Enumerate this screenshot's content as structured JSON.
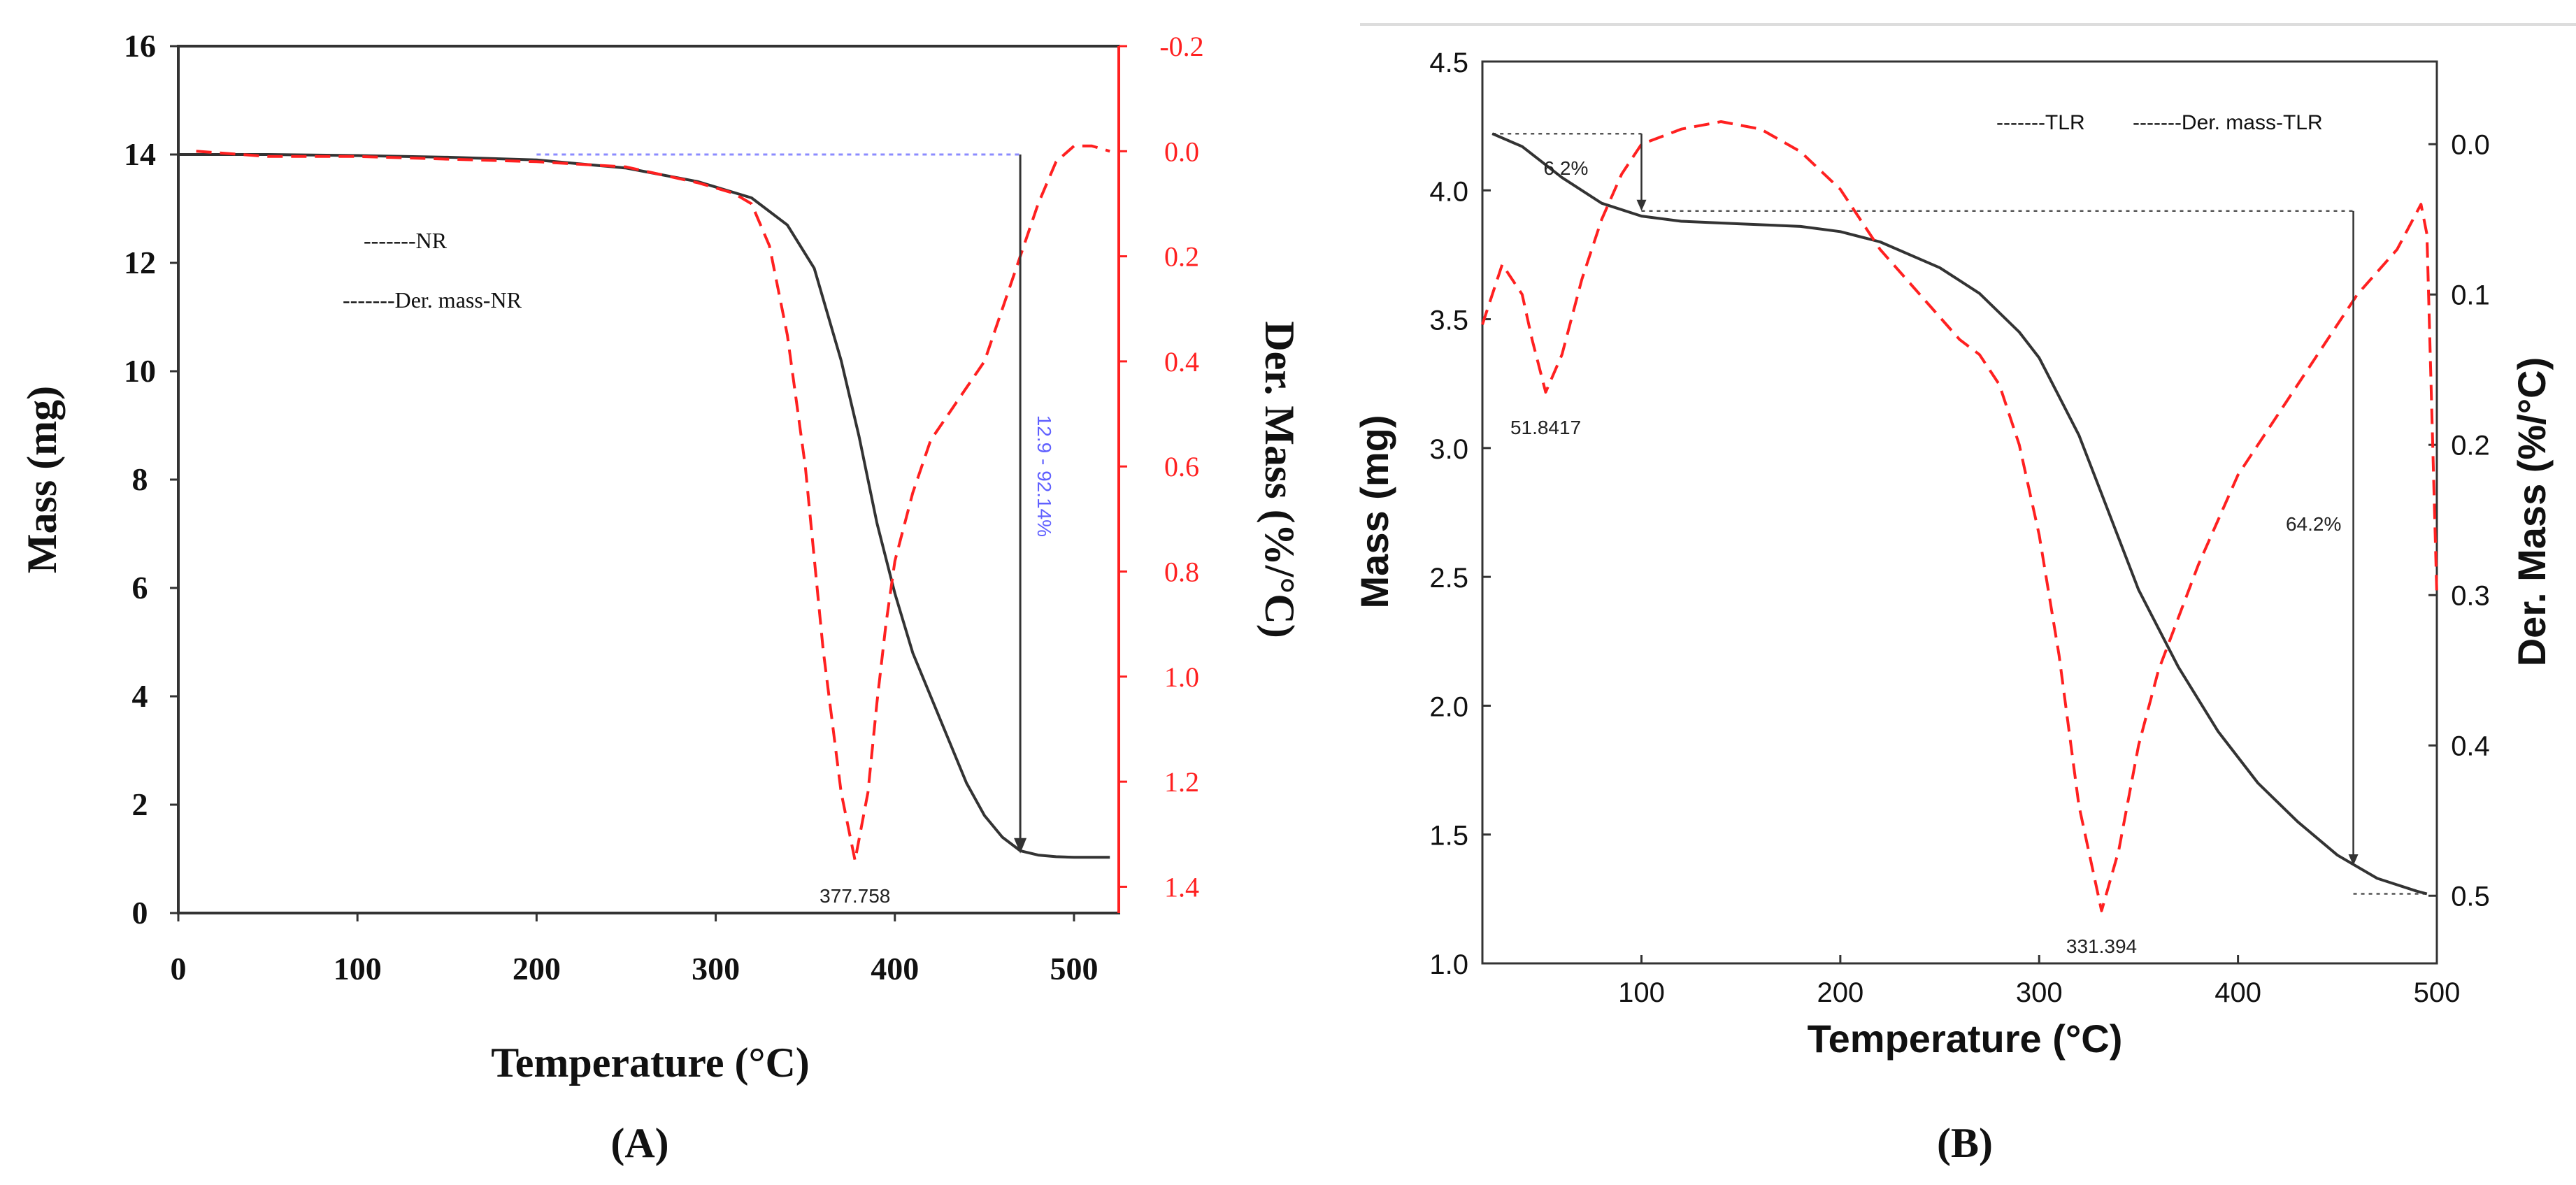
{
  "chart_data": [
    {
      "type": "line",
      "panel_label": "(A)",
      "xlabel": "Temperature (°C)",
      "ylabel": "Mass (mg)",
      "y2label": "Der. Mass (%/°C)",
      "xlim": [
        0,
        525
      ],
      "ylim": [
        0,
        16
      ],
      "y2lim": [
        -0.2,
        1.45
      ],
      "xticks": [
        0,
        100,
        200,
        300,
        400,
        500
      ],
      "yticks": [
        0,
        2,
        4,
        6,
        8,
        10,
        12,
        14,
        16
      ],
      "y2ticks": [
        "-0.2",
        "0.0",
        "0.2",
        "0.4",
        "0.6",
        "0.8",
        "1.0",
        "1.2",
        "1.4"
      ],
      "legend": [
        "-------NR",
        "-------Der. mass-NR"
      ],
      "series": [
        {
          "name": "NR",
          "axis": "left",
          "color": "#333333",
          "dashed": false,
          "x": [
            0,
            50,
            100,
            150,
            200,
            250,
            290,
            320,
            340,
            355,
            370,
            380,
            390,
            400,
            410,
            420,
            430,
            440,
            450,
            460,
            470,
            480,
            490,
            500,
            510,
            520
          ],
          "y": [
            14.0,
            14.0,
            13.98,
            13.95,
            13.9,
            13.75,
            13.5,
            13.2,
            12.7,
            11.9,
            10.2,
            8.8,
            7.2,
            5.9,
            4.8,
            4.0,
            3.2,
            2.4,
            1.8,
            1.4,
            1.15,
            1.07,
            1.04,
            1.03,
            1.03,
            1.03
          ]
        },
        {
          "name": "Der. mass-NR",
          "axis": "right",
          "color": "#ff2020",
          "dashed": true,
          "x": [
            10,
            50,
            100,
            150,
            200,
            250,
            290,
            310,
            320,
            330,
            340,
            350,
            360,
            370,
            377.758,
            385,
            390,
            395,
            400,
            410,
            420,
            430,
            440,
            450,
            460,
            470,
            480,
            490,
            500,
            510,
            520
          ],
          "y": [
            0.0,
            0.01,
            0.01,
            0.015,
            0.02,
            0.03,
            0.06,
            0.08,
            0.1,
            0.18,
            0.35,
            0.6,
            0.95,
            1.22,
            1.35,
            1.22,
            1.05,
            0.9,
            0.78,
            0.65,
            0.55,
            0.5,
            0.45,
            0.4,
            0.3,
            0.2,
            0.1,
            0.02,
            -0.01,
            -0.01,
            0.0
          ]
        }
      ],
      "annotations": {
        "peak_label": "377.758",
        "mass_loss_label": "12.9 - 92.14%",
        "reference_line_y": 14.0,
        "arrow_x": 470,
        "arrow_from": 14.0,
        "arrow_to": 1.1
      }
    },
    {
      "type": "line",
      "panel_label": "(B)",
      "xlabel": "Temperature (°C)",
      "ylabel": "Mass (mg)",
      "y2label": "Der. Mass (%/°C)",
      "xlim": [
        20,
        500
      ],
      "ylim": [
        1.0,
        4.5
      ],
      "y2lim": [
        -0.055,
        0.545
      ],
      "xticks": [
        100,
        200,
        300,
        400,
        500
      ],
      "yticks": [
        "1.0",
        "1.5",
        "2.0",
        "2.5",
        "3.0",
        "3.5",
        "4.0",
        "4.5"
      ],
      "y2ticks": [
        "0.0",
        "0.1",
        "0.2",
        "0.3",
        "0.4",
        "0.5"
      ],
      "legend": [
        "-------TLR",
        "-------Der. mass-TLR"
      ],
      "series": [
        {
          "name": "TLR",
          "axis": "left",
          "color": "#333333",
          "dashed": false,
          "x": [
            25,
            40,
            60,
            80,
            100,
            120,
            150,
            180,
            200,
            220,
            250,
            270,
            290,
            300,
            310,
            320,
            330,
            340,
            350,
            370,
            390,
            410,
            430,
            450,
            470,
            490,
            495
          ],
          "y": [
            4.22,
            4.17,
            4.05,
            3.95,
            3.9,
            3.88,
            3.87,
            3.86,
            3.84,
            3.8,
            3.7,
            3.6,
            3.45,
            3.35,
            3.2,
            3.05,
            2.85,
            2.65,
            2.45,
            2.15,
            1.9,
            1.7,
            1.55,
            1.42,
            1.33,
            1.28,
            1.27
          ]
        },
        {
          "name": "Der. mass-TLR",
          "axis": "right",
          "color": "#ff2020",
          "dashed": true,
          "x": [
            20,
            30,
            40,
            45,
            51.8417,
            60,
            70,
            80,
            90,
            100,
            120,
            140,
            160,
            180,
            200,
            220,
            240,
            260,
            270,
            280,
            290,
            300,
            310,
            320,
            331.394,
            340,
            350,
            360,
            380,
            400,
            420,
            440,
            460,
            480,
            490,
            492,
            495,
            500
          ],
          "y": [
            0.12,
            0.08,
            0.1,
            0.13,
            0.165,
            0.14,
            0.09,
            0.05,
            0.02,
            0.0,
            -0.01,
            -0.015,
            -0.01,
            0.005,
            0.03,
            0.07,
            0.1,
            0.13,
            0.14,
            0.16,
            0.2,
            0.26,
            0.34,
            0.44,
            0.51,
            0.47,
            0.4,
            0.35,
            0.28,
            0.22,
            0.18,
            0.14,
            0.1,
            0.07,
            0.045,
            0.04,
            0.06,
            0.3
          ]
        }
      ],
      "annotations": {
        "peak_label": "51.8417",
        "peak2_label": "331.394",
        "loss1_label": "6.2%",
        "loss2_label": "64.2%"
      }
    }
  ]
}
